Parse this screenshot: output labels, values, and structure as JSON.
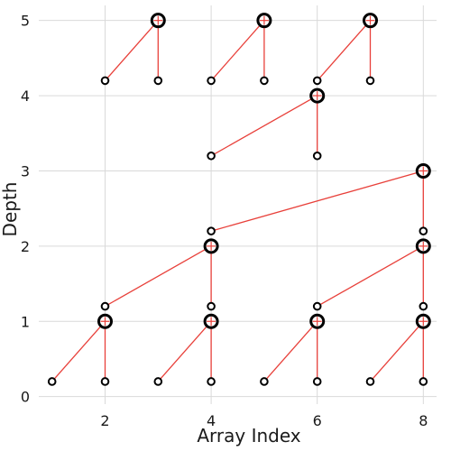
{
  "chart_data": {
    "type": "scatter",
    "xlabel": "Array Index",
    "ylabel": "Depth",
    "xlim": [
      0.75,
      8.25
    ],
    "ylim": [
      -0.1,
      5.2
    ],
    "xticks": [
      2,
      4,
      6,
      8
    ],
    "yticks": [
      0,
      1,
      2,
      3,
      4,
      5
    ],
    "grid": true,
    "colors": {
      "edge": "#e8403a",
      "node": "#000000",
      "grid": "#d9d9d9",
      "marker_cross": "#e8403a"
    },
    "leaf_points": [
      [
        1,
        0.2
      ],
      [
        2,
        0.2
      ],
      [
        3,
        0.2
      ],
      [
        4,
        0.2
      ],
      [
        5,
        0.2
      ],
      [
        6,
        0.2
      ],
      [
        7,
        0.2
      ],
      [
        8,
        0.2
      ],
      [
        2,
        1.2
      ],
      [
        4,
        1.2
      ],
      [
        6,
        1.2
      ],
      [
        8,
        1.2
      ],
      [
        4,
        2.2
      ],
      [
        8,
        2.2
      ],
      [
        4,
        3.2
      ],
      [
        6,
        3.2
      ],
      [
        2,
        4.2
      ],
      [
        3,
        4.2
      ],
      [
        4,
        4.2
      ],
      [
        5,
        4.2
      ],
      [
        6,
        4.2
      ],
      [
        7,
        4.2
      ]
    ],
    "parent_points": [
      [
        2,
        1
      ],
      [
        4,
        1
      ],
      [
        6,
        1
      ],
      [
        8,
        1
      ],
      [
        4,
        2
      ],
      [
        8,
        2
      ],
      [
        8,
        3
      ],
      [
        6,
        4
      ],
      [
        3,
        5
      ],
      [
        5,
        5
      ],
      [
        7,
        5
      ]
    ],
    "edges": [
      [
        [
          2,
          1
        ],
        [
          1,
          0.2
        ]
      ],
      [
        [
          2,
          1
        ],
        [
          2,
          0.2
        ]
      ],
      [
        [
          4,
          1
        ],
        [
          3,
          0.2
        ]
      ],
      [
        [
          4,
          1
        ],
        [
          4,
          0.2
        ]
      ],
      [
        [
          6,
          1
        ],
        [
          5,
          0.2
        ]
      ],
      [
        [
          6,
          1
        ],
        [
          6,
          0.2
        ]
      ],
      [
        [
          8,
          1
        ],
        [
          7,
          0.2
        ]
      ],
      [
        [
          8,
          1
        ],
        [
          8,
          0.2
        ]
      ],
      [
        [
          4,
          2
        ],
        [
          2,
          1.2
        ]
      ],
      [
        [
          4,
          2
        ],
        [
          4,
          1.2
        ]
      ],
      [
        [
          8,
          2
        ],
        [
          6,
          1.2
        ]
      ],
      [
        [
          8,
          2
        ],
        [
          8,
          1.2
        ]
      ],
      [
        [
          8,
          3
        ],
        [
          4,
          2.2
        ]
      ],
      [
        [
          8,
          3
        ],
        [
          8,
          2.2
        ]
      ],
      [
        [
          6,
          4
        ],
        [
          4,
          3.2
        ]
      ],
      [
        [
          6,
          4
        ],
        [
          6,
          3.2
        ]
      ],
      [
        [
          3,
          5
        ],
        [
          2,
          4.2
        ]
      ],
      [
        [
          3,
          5
        ],
        [
          3,
          4.2
        ]
      ],
      [
        [
          5,
          5
        ],
        [
          4,
          4.2
        ]
      ],
      [
        [
          5,
          5
        ],
        [
          5,
          4.2
        ]
      ],
      [
        [
          7,
          5
        ],
        [
          6,
          4.2
        ]
      ],
      [
        [
          7,
          5
        ],
        [
          7,
          4.2
        ]
      ]
    ]
  }
}
